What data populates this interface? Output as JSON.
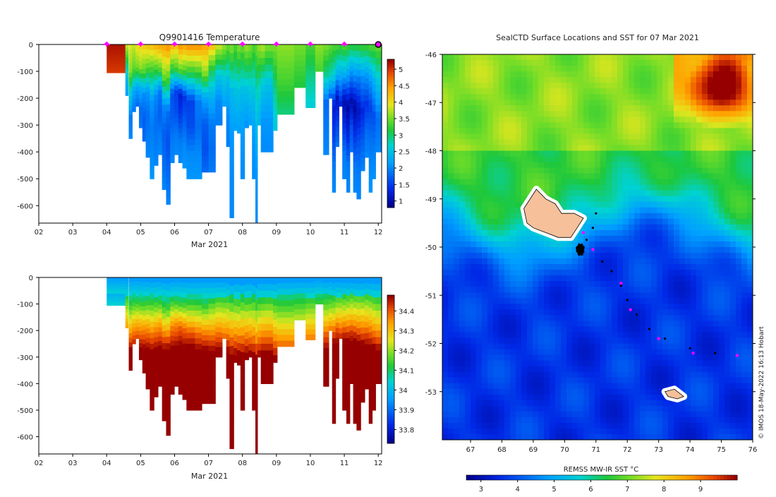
{
  "chart_data": [
    {
      "type": "heatmap",
      "title": "Q9901416  Temperature",
      "xlabel": "Mar 2021",
      "ylabel": "",
      "xticks": [
        "02",
        "03",
        "04",
        "05",
        "06",
        "07",
        "08",
        "09",
        "10",
        "11",
        "12"
      ],
      "xlim": [
        2,
        12.1
      ],
      "yticks": [
        0,
        -100,
        -200,
        -300,
        -400,
        -500,
        -600
      ],
      "ylim": [
        -665,
        0
      ],
      "colorbar": {
        "ticks": [
          1,
          1.5,
          2,
          2.5,
          3,
          3.5,
          4,
          4.5,
          5
        ],
        "range": [
          0.8,
          5.3
        ]
      },
      "surface_markers_days": [
        4,
        5,
        6,
        7,
        8,
        9,
        10,
        11
      ],
      "last_marker_day": 12,
      "profiles": [
        {
          "day": 4.0,
          "width": 0.55,
          "depth": 105,
          "values": [
            5.2,
            5.1,
            5.0
          ]
        },
        {
          "day": 4.55,
          "width": 0.08,
          "depth": 190,
          "values": [
            3.8,
            3.0,
            2.4,
            2.1
          ]
        },
        {
          "day": 4.65,
          "width": 0.1,
          "depth": 350,
          "values": [
            3.9,
            3.6,
            2.6,
            1.9,
            2.0
          ]
        },
        {
          "day": 4.75,
          "width": 0.1,
          "depth": 250,
          "values": [
            3.8,
            3.4,
            2.2,
            1.8
          ]
        },
        {
          "day": 4.85,
          "width": 0.1,
          "depth": 230,
          "values": [
            4.0,
            3.5,
            2.2,
            1.7
          ]
        },
        {
          "day": 4.95,
          "width": 0.1,
          "depth": 310,
          "values": [
            4.1,
            3.6,
            2.3,
            1.8,
            1.9
          ]
        },
        {
          "day": 5.05,
          "width": 0.1,
          "depth": 360,
          "values": [
            4.1,
            3.4,
            2.0,
            1.7,
            1.8
          ]
        },
        {
          "day": 5.15,
          "width": 0.12,
          "depth": 420,
          "values": [
            4.2,
            3.3,
            2.1,
            1.8,
            1.9,
            2.0
          ]
        },
        {
          "day": 5.27,
          "width": 0.12,
          "depth": 500,
          "values": [
            4.2,
            3.1,
            2.1,
            1.9,
            2.0,
            2.1
          ]
        },
        {
          "day": 5.39,
          "width": 0.12,
          "depth": 450,
          "values": [
            4.3,
            3.2,
            2.0,
            1.8,
            1.9,
            2.0
          ]
        },
        {
          "day": 5.51,
          "width": 0.12,
          "depth": 410,
          "values": [
            4.4,
            3.4,
            1.9,
            1.7,
            1.9,
            2.0
          ]
        },
        {
          "day": 5.63,
          "width": 0.12,
          "depth": 540,
          "values": [
            4.4,
            3.5,
            2.0,
            1.7,
            1.8,
            2.0
          ]
        },
        {
          "day": 5.75,
          "width": 0.12,
          "depth": 595,
          "values": [
            4.5,
            3.3,
            1.8,
            1.6,
            1.8,
            2.0
          ]
        },
        {
          "day": 5.87,
          "width": 0.12,
          "depth": 440,
          "values": [
            4.3,
            3.1,
            1.6,
            1.7,
            1.9,
            2.0
          ]
        },
        {
          "day": 5.99,
          "width": 0.12,
          "depth": 410,
          "values": [
            4.2,
            3.3,
            1.5,
            1.6,
            1.9,
            2.0
          ]
        },
        {
          "day": 6.11,
          "width": 0.12,
          "depth": 440,
          "values": [
            4.5,
            3.4,
            1.2,
            1.5,
            1.9,
            2.0
          ]
        },
        {
          "day": 6.23,
          "width": 0.12,
          "depth": 460,
          "values": [
            4.4,
            3.3,
            1.4,
            1.7,
            2.0,
            2.1
          ]
        },
        {
          "day": 6.35,
          "width": 0.25,
          "depth": 500,
          "values": [
            4.5,
            3.1,
            1.5,
            1.6,
            2.0,
            2.1
          ]
        },
        {
          "day": 6.6,
          "width": 0.2,
          "depth": 500,
          "values": [
            4.5,
            3.2,
            1.9,
            1.8,
            2.0,
            2.1
          ]
        },
        {
          "day": 6.8,
          "width": 0.2,
          "depth": 475,
          "values": [
            4.4,
            3.6,
            2.2,
            1.7,
            1.6,
            1.8
          ]
        },
        {
          "day": 7.0,
          "width": 0.2,
          "depth": 475,
          "values": [
            4.2,
            3.0,
            2.3,
            1.9,
            1.8,
            1.9
          ]
        },
        {
          "day": 7.2,
          "width": 0.2,
          "depth": 300,
          "values": [
            3.8,
            2.6,
            2.0,
            1.9
          ]
        },
        {
          "day": 7.4,
          "width": 0.12,
          "depth": 230,
          "values": [
            3.6,
            2.6,
            2.1
          ]
        },
        {
          "day": 7.52,
          "width": 0.1,
          "depth": 380,
          "values": [
            3.4,
            2.4,
            2.0,
            1.9
          ]
        },
        {
          "day": 7.62,
          "width": 0.12,
          "depth": 645,
          "values": [
            3.5,
            2.4,
            2.1,
            2.0,
            2.0
          ]
        },
        {
          "day": 7.74,
          "width": 0.1,
          "depth": 320,
          "values": [
            3.3,
            2.5,
            2.1
          ]
        },
        {
          "day": 7.84,
          "width": 0.1,
          "depth": 330,
          "values": [
            3.5,
            2.5,
            2.1
          ]
        },
        {
          "day": 7.94,
          "width": 0.12,
          "depth": 500,
          "values": [
            3.4,
            2.4,
            2.1,
            2.0
          ]
        },
        {
          "day": 8.06,
          "width": 0.12,
          "depth": 310,
          "values": [
            3.6,
            2.5,
            2.0
          ]
        },
        {
          "day": 8.18,
          "width": 0.1,
          "depth": 300,
          "values": [
            3.5,
            2.6,
            2.1
          ]
        },
        {
          "day": 8.28,
          "width": 0.1,
          "depth": 500,
          "values": [
            3.3,
            2.5,
            2.1,
            2.0
          ]
        },
        {
          "day": 8.38,
          "width": 0.06,
          "depth": 665,
          "values": [
            3.4,
            2.6,
            2.1,
            2.0
          ]
        },
        {
          "day": 8.44,
          "width": 0.1,
          "depth": 300,
          "values": [
            3.6,
            2.7,
            2.3
          ]
        },
        {
          "day": 8.54,
          "width": 0.12,
          "depth": 400,
          "values": [
            3.7,
            2.6,
            2.1,
            2.0
          ]
        },
        {
          "day": 8.66,
          "width": 0.24,
          "depth": 400,
          "values": [
            3.5,
            2.5,
            2.1,
            2.0
          ]
        },
        {
          "day": 8.9,
          "width": 0.12,
          "depth": 320,
          "values": [
            3.5,
            2.9,
            2.5
          ]
        },
        {
          "day": 9.02,
          "width": 0.5,
          "depth": 260,
          "values": [
            3.6,
            3.3,
            2.9
          ]
        },
        {
          "day": 9.52,
          "width": 0.34,
          "depth": 160,
          "values": [
            3.5,
            3.1
          ]
        },
        {
          "day": 9.86,
          "width": 0.28,
          "depth": 235,
          "values": [
            3.3,
            2.9,
            2.6
          ]
        },
        {
          "day": 10.14,
          "width": 0.24,
          "depth": 100,
          "values": [
            3.6,
            3.3
          ]
        },
        {
          "day": 10.38,
          "width": 0.16,
          "depth": 410,
          "values": [
            3.5,
            2.9,
            1.8,
            1.9,
            2.0
          ]
        },
        {
          "day": 10.54,
          "width": 0.1,
          "depth": 200,
          "values": [
            3.4,
            2.8,
            1.5
          ]
        },
        {
          "day": 10.64,
          "width": 0.1,
          "depth": 550,
          "values": [
            3.3,
            2.6,
            1.2,
            1.5,
            1.9,
            2.0
          ]
        },
        {
          "day": 10.74,
          "width": 0.1,
          "depth": 380,
          "values": [
            3.3,
            2.4,
            1.1,
            1.5,
            1.9
          ]
        },
        {
          "day": 10.84,
          "width": 0.1,
          "depth": 230,
          "values": [
            3.2,
            2.2,
            1.1
          ]
        },
        {
          "day": 10.94,
          "width": 0.12,
          "depth": 500,
          "values": [
            3.3,
            2.3,
            1.0,
            1.4,
            1.9,
            2.0
          ]
        },
        {
          "day": 11.06,
          "width": 0.1,
          "depth": 550,
          "values": [
            3.2,
            2.1,
            0.9,
            1.3,
            1.9,
            2.0
          ]
        },
        {
          "day": 11.16,
          "width": 0.1,
          "depth": 400,
          "values": [
            3.1,
            2.0,
            1.0,
            1.6,
            1.9
          ]
        },
        {
          "day": 11.26,
          "width": 0.1,
          "depth": 550,
          "values": [
            3.1,
            2.0,
            0.9,
            1.4,
            1.9,
            2.0
          ]
        },
        {
          "day": 11.36,
          "width": 0.12,
          "depth": 575,
          "values": [
            3.1,
            1.9,
            1.1,
            1.6,
            1.9,
            2.0
          ]
        },
        {
          "day": 11.48,
          "width": 0.12,
          "depth": 470,
          "values": [
            3.2,
            2.0,
            1.3,
            1.7,
            2.0
          ]
        },
        {
          "day": 11.6,
          "width": 0.12,
          "depth": 420,
          "values": [
            3.2,
            2.1,
            1.4,
            1.8,
            2.0
          ]
        },
        {
          "day": 11.72,
          "width": 0.1,
          "depth": 550,
          "values": [
            3.3,
            2.2,
            1.5,
            1.8,
            2.0,
            2.1
          ]
        },
        {
          "day": 11.82,
          "width": 0.1,
          "depth": 500,
          "values": [
            3.3,
            2.3,
            1.6,
            1.9,
            2.1
          ]
        },
        {
          "day": 11.92,
          "width": 0.18,
          "depth": 400,
          "values": [
            3.4,
            2.5,
            1.8,
            2.0
          ]
        }
      ]
    },
    {
      "type": "heatmap",
      "title": "",
      "xlabel": "Mar 2021",
      "ylabel": "",
      "xticks": [
        "02",
        "03",
        "04",
        "05",
        "06",
        "07",
        "08",
        "09",
        "10",
        "11",
        "12"
      ],
      "xlim": [
        2,
        12.1
      ],
      "yticks": [
        0,
        -100,
        -200,
        -300,
        -400,
        -500,
        -600
      ],
      "ylim": [
        -665,
        0
      ],
      "colorbar": {
        "ticks": [
          33.8,
          33.9,
          34,
          34.1,
          34.2,
          34.3,
          34.4
        ],
        "range": [
          33.73,
          34.48
        ]
      },
      "profiles_from_temperature_panel": true
    },
    {
      "type": "heatmap",
      "title": "SealCTD Surface Locations and SST for 07 Mar 2021",
      "xlabel": "",
      "ylabel": "",
      "xticks": [
        67,
        68,
        69,
        70,
        71,
        72,
        73,
        74,
        75,
        76
      ],
      "xlim": [
        66.1,
        76.0
      ],
      "yticks": [
        -46,
        -47,
        -48,
        -49,
        -50,
        -51,
        -52,
        -53
      ],
      "ylim": [
        -54.0,
        -46.0
      ],
      "colorbar": {
        "label": "REMSS MW-IR SST °C",
        "ticks": [
          3,
          4,
          5,
          6,
          7,
          8,
          9
        ],
        "range": [
          2.6,
          10.0
        ]
      },
      "surface_points": [
        [
          70.5,
          -50.1
        ],
        [
          70.6,
          -50.0
        ],
        [
          70.4,
          -50.05
        ],
        [
          70.55,
          -49.95
        ],
        [
          70.7,
          -49.85
        ],
        [
          70.9,
          -49.6
        ],
        [
          71.0,
          -49.3
        ],
        [
          71.2,
          -50.3
        ],
        [
          71.5,
          -50.5
        ],
        [
          71.8,
          -50.8
        ],
        [
          72.0,
          -51.1
        ],
        [
          72.3,
          -51.4
        ],
        [
          72.7,
          -51.7
        ],
        [
          73.2,
          -51.9
        ],
        [
          74.0,
          -52.1
        ],
        [
          74.8,
          -52.2
        ],
        [
          75.5,
          -52.25
        ]
      ],
      "daily_markers": [
        [
          70.6,
          -49.7
        ],
        [
          70.9,
          -50.05
        ],
        [
          71.8,
          -50.75
        ],
        [
          72.1,
          -51.3
        ],
        [
          73.0,
          -51.9
        ],
        [
          74.1,
          -52.2
        ],
        [
          75.5,
          -52.25
        ]
      ],
      "islands": [
        {
          "name": "Kerguelen",
          "coords": [
            [
              68.7,
              -49.2
            ],
            [
              69.1,
              -48.8
            ],
            [
              69.4,
              -49.0
            ],
            [
              69.7,
              -49.1
            ],
            [
              69.9,
              -49.3
            ],
            [
              70.3,
              -49.3
            ],
            [
              70.6,
              -49.4
            ],
            [
              70.4,
              -49.6
            ],
            [
              70.2,
              -49.8
            ],
            [
              69.8,
              -49.8
            ],
            [
              69.4,
              -49.7
            ],
            [
              69.0,
              -49.6
            ],
            [
              68.8,
              -49.5
            ]
          ]
        },
        {
          "name": "Heard",
          "coords": [
            [
              73.2,
              -53.0
            ],
            [
              73.5,
              -52.95
            ],
            [
              73.8,
              -53.1
            ],
            [
              73.6,
              -53.15
            ],
            [
              73.3,
              -53.1
            ]
          ]
        }
      ]
    }
  ],
  "credit": "© IMOS 18-May-2022 16:13 Hobart"
}
